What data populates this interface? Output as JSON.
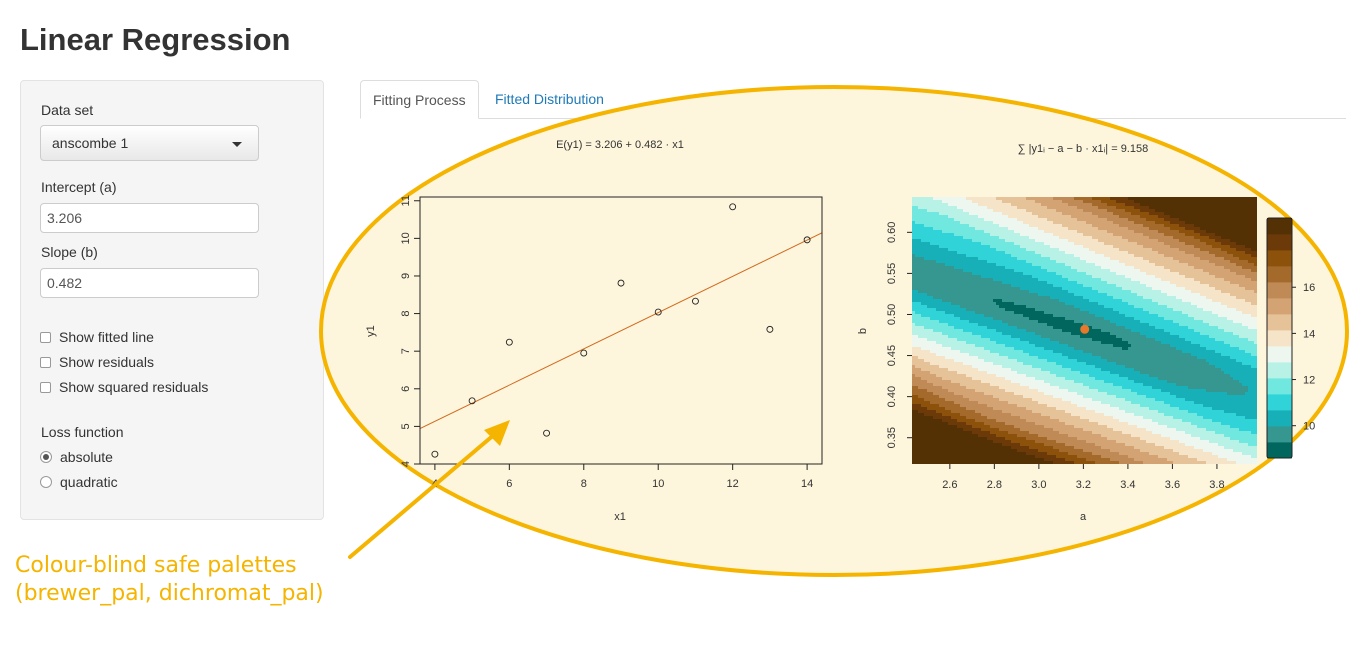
{
  "title": "Linear Regression",
  "sidebar": {
    "dataset_label": "Data set",
    "dataset_value": "anscombe 1",
    "intercept_label": "Intercept (a)",
    "intercept_value": "3.206",
    "slope_label": "Slope (b)",
    "slope_value": "0.482",
    "checkboxes": [
      {
        "label": "Show fitted line",
        "checked": false
      },
      {
        "label": "Show residuals",
        "checked": false
      },
      {
        "label": "Show squared residuals",
        "checked": false
      }
    ],
    "loss_label": "Loss function",
    "loss_options": [
      {
        "label": "absolute",
        "selected": true
      },
      {
        "label": "quadratic",
        "selected": false
      }
    ]
  },
  "tabs": [
    {
      "label": "Fitting Process",
      "active": true
    },
    {
      "label": "Fitted Distribution",
      "active": false
    }
  ],
  "colors": {
    "highlight_ellipse": "#f5b400",
    "highlight_fill": "#fdf6dc",
    "fit_line": "#d2691e",
    "estimate_point": "#e8782a",
    "tab_link": "#1f7ab8"
  },
  "annotation": {
    "line1": "Colour-blind safe palettes",
    "line2": "(brewer_pal, dichromat_pal)"
  },
  "chart_data": [
    {
      "type": "scatter",
      "title": "E(y1) = 3.206 + 0.482 · x1",
      "xlabel": "x1",
      "ylabel": "y1",
      "xlim": [
        3.6,
        14.4
      ],
      "ylim": [
        4.0,
        11.1
      ],
      "x_ticks": [
        "4",
        "6",
        "8",
        "10",
        "12",
        "14"
      ],
      "y_ticks": [
        "4",
        "5",
        "6",
        "7",
        "8",
        "9",
        "10",
        "11"
      ],
      "points": [
        {
          "x": 10,
          "y": 8.04
        },
        {
          "x": 8,
          "y": 6.95
        },
        {
          "x": 13,
          "y": 7.58
        },
        {
          "x": 9,
          "y": 8.81
        },
        {
          "x": 11,
          "y": 8.33
        },
        {
          "x": 14,
          "y": 9.96
        },
        {
          "x": 6,
          "y": 7.24
        },
        {
          "x": 4,
          "y": 4.26
        },
        {
          "x": 12,
          "y": 10.84
        },
        {
          "x": 7,
          "y": 4.82
        },
        {
          "x": 5,
          "y": 5.68
        }
      ],
      "line": {
        "intercept": 3.206,
        "slope": 0.482
      }
    },
    {
      "type": "heatmap",
      "title": "∑ |y1ᵢ − a − b · x1ᵢ| = 9.158",
      "xlabel": "a",
      "ylabel": "b",
      "xlim": [
        2.43,
        3.98
      ],
      "ylim": [
        0.318,
        0.643
      ],
      "x_ticks": [
        "2.6",
        "2.8",
        "3.0",
        "3.2",
        "3.4",
        "3.6",
        "3.8"
      ],
      "y_ticks": [
        "0.35",
        "0.40",
        "0.45",
        "0.50",
        "0.55",
        "0.60"
      ],
      "estimate": {
        "a": 3.206,
        "b": 0.482
      },
      "legend_ticks": [
        "10",
        "12",
        "14",
        "16"
      ],
      "legend_range": [
        8.6,
        19.0
      ],
      "palette": [
        "#01665e",
        "#35978f",
        "#18b0b8",
        "#2fd3d8",
        "#70e8e0",
        "#b8f2e6",
        "#eef7ef",
        "#f6e4c8",
        "#e5c298",
        "#d4a373",
        "#bf8a55",
        "#a36a2c",
        "#8c510a",
        "#6b3a08",
        "#543005"
      ]
    }
  ]
}
